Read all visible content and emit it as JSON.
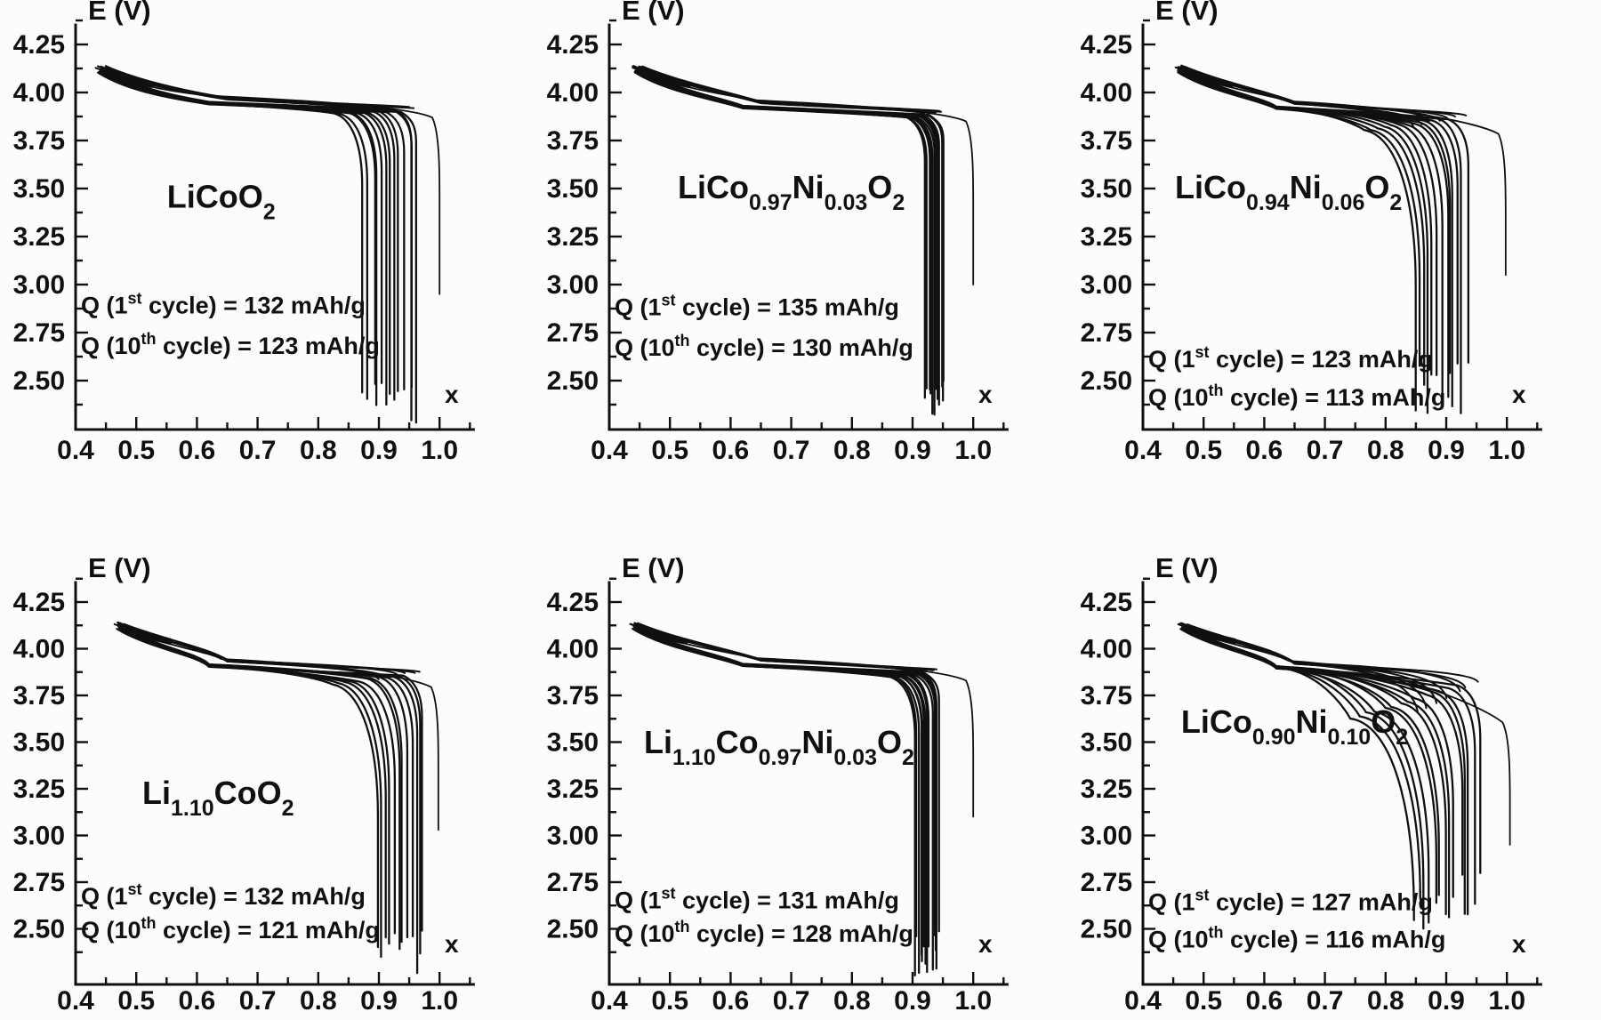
{
  "figure": {
    "background": "#fcfcfc",
    "ink_color": "#101010",
    "layout": {
      "rows": 2,
      "cols": 3
    }
  },
  "chart_data": {
    "type": "line",
    "description": "Six panels of galvanostatic charge-discharge voltage curves E(V) versus lithium content x in Li_x host, cycles 1-10 overlaid per panel",
    "shared_axes": {
      "xlabel": "x",
      "ylabel": "E (V)",
      "xlim": [
        0.4,
        1.05
      ],
      "ylim": [
        2.2,
        4.4
      ],
      "x_ticks": [
        0.4,
        0.5,
        0.6,
        0.7,
        0.8,
        0.9,
        1.0
      ],
      "y_ticks": [
        2.5,
        2.75,
        3.0,
        3.25,
        3.5,
        3.75,
        4.0,
        4.25
      ],
      "x_minor_step": 0.05,
      "y_minor_step": 0.125,
      "grid": false,
      "legend": "none"
    },
    "panels": [
      {
        "composition": "LiCoO2",
        "title_segments": [
          {
            "t": "LiCoO"
          },
          {
            "t": "2",
            "sub": true
          }
        ],
        "q_first_cycle_mAh_g": 132,
        "q_tenth_cycle_mAh_g": 123,
        "annotation_line1": "Q (1st cycle) = 132 mAh/g",
        "annotation_line2": "Q (10th cycle) = 123 mAh/g",
        "q1_segments": [
          {
            "t": "Q (1"
          },
          {
            "t": "st",
            "sup": true
          },
          {
            "t": " cycle) = 132 mAh/g"
          }
        ],
        "q2_segments": [
          {
            "t": "Q (10"
          },
          {
            "t": "th",
            "sup": true
          },
          {
            "t": " cycle) = 123 mAh/g"
          }
        ],
        "label_pos": {
          "x": 0.64,
          "E": 3.4
        },
        "q_pos_E": [
          2.85,
          2.64
        ],
        "curve_model": {
          "start_x": 0.445,
          "start_E": 4.13,
          "plateau_E": 3.91,
          "n_strokes": 13,
          "cycles_shown": 10,
          "discharge_end_x_first": 0.965,
          "discharge_end_x_last": 0.875,
          "tail_curv": 0.25,
          "shoulder_drop": 0.02,
          "bottom_E_range": [
            2.28,
            2.52
          ],
          "outer_cycle": {
            "end_x": 1.0,
            "bottom_E": 2.95
          }
        }
      },
      {
        "composition": "LiCo0.97Ni0.03O2",
        "title_segments": [
          {
            "t": "LiCo"
          },
          {
            "t": "0.97",
            "sub": true
          },
          {
            "t": "Ni"
          },
          {
            "t": "0.03",
            "sub": true
          },
          {
            "t": "O"
          },
          {
            "t": "2",
            "sub": true
          }
        ],
        "q_first_cycle_mAh_g": 135,
        "q_tenth_cycle_mAh_g": 130,
        "annotation_line1": "Q (1st cycle) = 135 mAh/g",
        "annotation_line2": "Q (10th cycle) = 130 mAh/g",
        "q1_segments": [
          {
            "t": "Q (1"
          },
          {
            "t": "st",
            "sup": true
          },
          {
            "t": " cycle) = 135 mAh/g"
          }
        ],
        "q2_segments": [
          {
            "t": "Q (10"
          },
          {
            "t": "th",
            "sup": true
          },
          {
            "t": " cycle) = 130 mAh/g"
          }
        ],
        "label_pos": {
          "x": 0.7,
          "E": 3.45
        },
        "q_pos_E": [
          2.84,
          2.63
        ],
        "curve_model": {
          "start_x": 0.45,
          "start_E": 4.13,
          "plateau_E": 3.89,
          "n_strokes": 16,
          "cycles_shown": 10,
          "discharge_end_x_first": 0.952,
          "discharge_end_x_last": 0.922,
          "tail_curv": 0.12,
          "shoulder_drop": 0.02,
          "bottom_E_range": [
            2.28,
            2.5
          ],
          "outer_cycle": {
            "end_x": 1.0,
            "bottom_E": 3.0
          }
        }
      },
      {
        "composition": "LiCo0.94Ni0.06O2",
        "title_segments": [
          {
            "t": "LiCo"
          },
          {
            "t": "0.94",
            "sub": true
          },
          {
            "t": "Ni"
          },
          {
            "t": "0.06",
            "sub": true
          },
          {
            "t": "O"
          },
          {
            "t": "2",
            "sub": true
          }
        ],
        "q_first_cycle_mAh_g": 123,
        "q_tenth_cycle_mAh_g": 113,
        "annotation_line1": "Q (1st cycle) = 123 mAh/g",
        "annotation_line2": "Q (10th cycle) = 113 mAh/g",
        "q1_segments": [
          {
            "t": "Q (1"
          },
          {
            "t": "st",
            "sup": true
          },
          {
            "t": " cycle) = 123 mAh/g"
          }
        ],
        "q2_segments": [
          {
            "t": "Q (10"
          },
          {
            "t": "th",
            "sup": true
          },
          {
            "t": " cycle) = 113 mAh/g"
          }
        ],
        "label_pos": {
          "x": 0.64,
          "E": 3.45
        },
        "q_pos_E": [
          2.57,
          2.37
        ],
        "curve_model": {
          "start_x": 0.465,
          "start_E": 4.13,
          "plateau_E": 3.885,
          "n_strokes": 13,
          "cycles_shown": 10,
          "discharge_end_x_first": 0.935,
          "discharge_end_x_last": 0.85,
          "tail_curv": 0.65,
          "shoulder_drop": 0.08,
          "bottom_E_range": [
            2.33,
            2.6
          ],
          "outer_cycle": {
            "end_x": 0.998,
            "bottom_E": 3.05
          }
        }
      },
      {
        "composition": "Li1.10CoO2",
        "title_segments": [
          {
            "t": "Li"
          },
          {
            "t": "1.10",
            "sub": true
          },
          {
            "t": "CoO"
          },
          {
            "t": "2",
            "sub": true
          }
        ],
        "q_first_cycle_mAh_g": 132,
        "q_tenth_cycle_mAh_g": 121,
        "annotation_line1": "Q (1st cycle) = 132 mAh/g",
        "annotation_line2": "Q (10th cycle) = 121 mAh/g",
        "q1_segments": [
          {
            "t": "Q (1"
          },
          {
            "t": "st",
            "sup": true
          },
          {
            "t": " cycle) = 132 mAh/g"
          }
        ],
        "q2_segments": [
          {
            "t": "Q (10"
          },
          {
            "t": "th",
            "sup": true
          },
          {
            "t": " cycle) = 121 mAh/g"
          }
        ],
        "label_pos": {
          "x": 0.635,
          "E": 3.17
        },
        "q_pos_E": [
          2.63,
          2.45
        ],
        "curve_model": {
          "start_x": 0.475,
          "start_E": 4.13,
          "plateau_E": 3.875,
          "n_strokes": 12,
          "cycles_shown": 10,
          "discharge_end_x_first": 0.975,
          "discharge_end_x_last": 0.895,
          "tail_curv": 0.55,
          "shoulder_drop": 0.06,
          "bottom_E_range": [
            2.25,
            2.5
          ],
          "outer_cycle": {
            "end_x": 0.998,
            "bottom_E": 3.03
          }
        }
      },
      {
        "composition": "Li1.10Co0.97Ni0.03O2",
        "title_segments": [
          {
            "t": "Li"
          },
          {
            "t": "1.10",
            "sub": true
          },
          {
            "t": "Co"
          },
          {
            "t": "0.97",
            "sub": true
          },
          {
            "t": "Ni"
          },
          {
            "t": "0.03",
            "sub": true
          },
          {
            "t": "O"
          },
          {
            "t": "2",
            "sub": true
          }
        ],
        "q_first_cycle_mAh_g": 131,
        "q_tenth_cycle_mAh_g": 128,
        "annotation_line1": "Q (1st cycle) = 131 mAh/g",
        "annotation_line2": "Q (10th cycle) = 128 mAh/g",
        "q1_segments": [
          {
            "t": "Q (1"
          },
          {
            "t": "st",
            "sup": true
          },
          {
            "t": " cycle) = 131 mAh/g"
          }
        ],
        "q2_segments": [
          {
            "t": "Q (10"
          },
          {
            "t": "th",
            "sup": true
          },
          {
            "t": " cycle) = 128 mAh/g"
          }
        ],
        "label_pos": {
          "x": 0.68,
          "E": 3.44
        },
        "q_pos_E": [
          2.61,
          2.43
        ],
        "curve_model": {
          "start_x": 0.445,
          "start_E": 4.13,
          "plateau_E": 3.88,
          "n_strokes": 16,
          "cycles_shown": 10,
          "discharge_end_x_first": 0.945,
          "discharge_end_x_last": 0.905,
          "tail_curv": 0.2,
          "shoulder_drop": 0.03,
          "bottom_E_range": [
            2.25,
            2.5
          ],
          "outer_cycle": {
            "end_x": 1.0,
            "bottom_E": 3.1
          }
        }
      },
      {
        "composition": "LiCo0.90Ni0.10O2",
        "title_segments": [
          {
            "t": "LiCo"
          },
          {
            "t": "0.90",
            "sub": true
          },
          {
            "t": "Ni"
          },
          {
            "t": "0.10",
            "sub": true
          },
          {
            "t": "O"
          },
          {
            "t": "2",
            "sub": true
          }
        ],
        "q_first_cycle_mAh_g": 127,
        "q_tenth_cycle_mAh_g": 116,
        "annotation_line1": "Q (1st cycle) = 127 mAh/g",
        "annotation_line2": "Q (10th cycle) = 116 mAh/g",
        "q1_segments": [
          {
            "t": "Q (1"
          },
          {
            "t": "st",
            "sup": true
          },
          {
            "t": " cycle) = 127 mAh/g"
          }
        ],
        "q2_segments": [
          {
            "t": "Q (10"
          },
          {
            "t": "th",
            "sup": true
          },
          {
            "t": " cycle) = 116 mAh/g"
          }
        ],
        "label_pos": {
          "x": 0.65,
          "E": 3.55
        },
        "q_pos_E": [
          2.6,
          2.4
        ],
        "curve_model": {
          "start_x": 0.47,
          "start_E": 4.13,
          "plateau_E": 3.865,
          "n_strokes": 14,
          "cycles_shown": 10,
          "discharge_end_x_first": 0.955,
          "discharge_end_x_last": 0.85,
          "tail_curv": 0.85,
          "shoulder_drop": 0.24,
          "bottom_E_range": [
            2.5,
            2.82
          ],
          "outer_cycle": {
            "end_x": 1.005,
            "bottom_E": 2.95
          }
        }
      }
    ]
  }
}
